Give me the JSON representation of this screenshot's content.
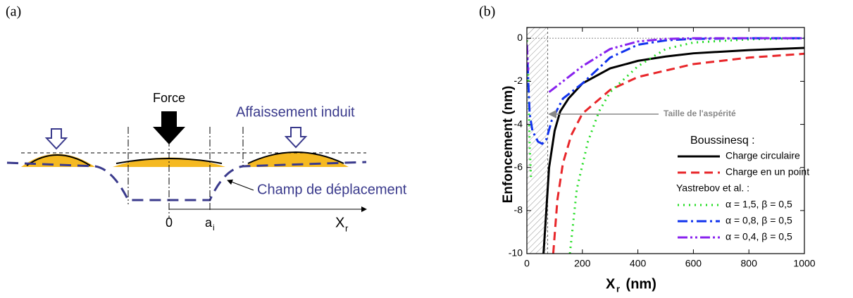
{
  "diagram": {
    "panel_label": "(a)",
    "force": "Force",
    "subsidence": "Affaissement induit",
    "displacement": "Champ de déplacement",
    "origin": "0",
    "a": "a",
    "a_sub": "i",
    "x": "X",
    "x_sub": "r"
  },
  "chart_data": {
    "type": "line",
    "panel_label": "(b)",
    "ylabel": "Enfoncement  (nm)",
    "xlabel": "X",
    "xlabel_sub": "r",
    "xlabel_unit": " (nm)",
    "xlim": [
      0,
      1000
    ],
    "ylim": [
      -10,
      0.5
    ],
    "xticks": [
      0,
      200,
      400,
      600,
      800,
      1000
    ],
    "yticks": [
      -10,
      -8,
      -6,
      -4,
      -2,
      0
    ],
    "asperity_size": 75,
    "annotation": "Taille de l'aspérité",
    "legend_titles": [
      "Boussinesq :",
      "Yastrebov et al. :"
    ],
    "series": [
      {
        "name": "Charge circulaire",
        "color": "#000000",
        "dash": "",
        "x": [
          60,
          70,
          80,
          100,
          120,
          150,
          200,
          300,
          400,
          500,
          600,
          800,
          1000
        ],
        "values": [
          -10,
          -8,
          -6,
          -4.3,
          -3.4,
          -2.8,
          -2.1,
          -1.4,
          -1.05,
          -0.85,
          -0.7,
          -0.55,
          -0.45
        ]
      },
      {
        "name": "Charge en un point",
        "color": "#e8262a",
        "dash": "12 7",
        "x": [
          95,
          110,
          130,
          160,
          200,
          300,
          400,
          600,
          800,
          1000
        ],
        "values": [
          -10,
          -7.5,
          -5.8,
          -4.5,
          -3.5,
          -2.4,
          -1.8,
          -1.2,
          -0.9,
          -0.72
        ]
      },
      {
        "name": "α = 1,5, β = 0,5",
        "color": "#22dd22",
        "dash": "2 6",
        "x": [
          0,
          5,
          10,
          15,
          null,
          155,
          180,
          220,
          260,
          300,
          400,
          500,
          600,
          800,
          1000
        ],
        "values": [
          -0.1,
          -2,
          -5,
          -6.5,
          null,
          -10,
          -7,
          -4.8,
          -3.4,
          -2.5,
          -1.3,
          -0.5,
          -0.2,
          -0.05,
          0
        ]
      },
      {
        "name": "α = 0,8, β = 0,5",
        "color": "#1133ee",
        "dash": "14 5 3 5",
        "x": [
          0,
          5,
          10,
          20,
          40,
          55,
          70,
          90,
          130,
          200,
          300,
          400,
          500,
          600,
          800,
          1000
        ],
        "values": [
          -0.3,
          -2,
          -3.5,
          -4.3,
          -4.8,
          -4.9,
          -4.7,
          -3.8,
          -2.8,
          -2.1,
          -0.9,
          -0.3,
          -0.1,
          -0.03,
          0,
          0
        ]
      },
      {
        "name": "α = 0,4, β = 0,5",
        "color": "#8822ee",
        "dash": "14 4 3 4 3 4",
        "x": [
          0,
          5,
          null,
          80,
          150,
          200,
          300,
          400,
          500,
          600,
          800,
          1000
        ],
        "values": [
          -0.3,
          -1.5,
          null,
          -2.5,
          -1.8,
          -1.3,
          -0.5,
          -0.15,
          -0.03,
          0,
          0,
          0
        ]
      }
    ]
  }
}
